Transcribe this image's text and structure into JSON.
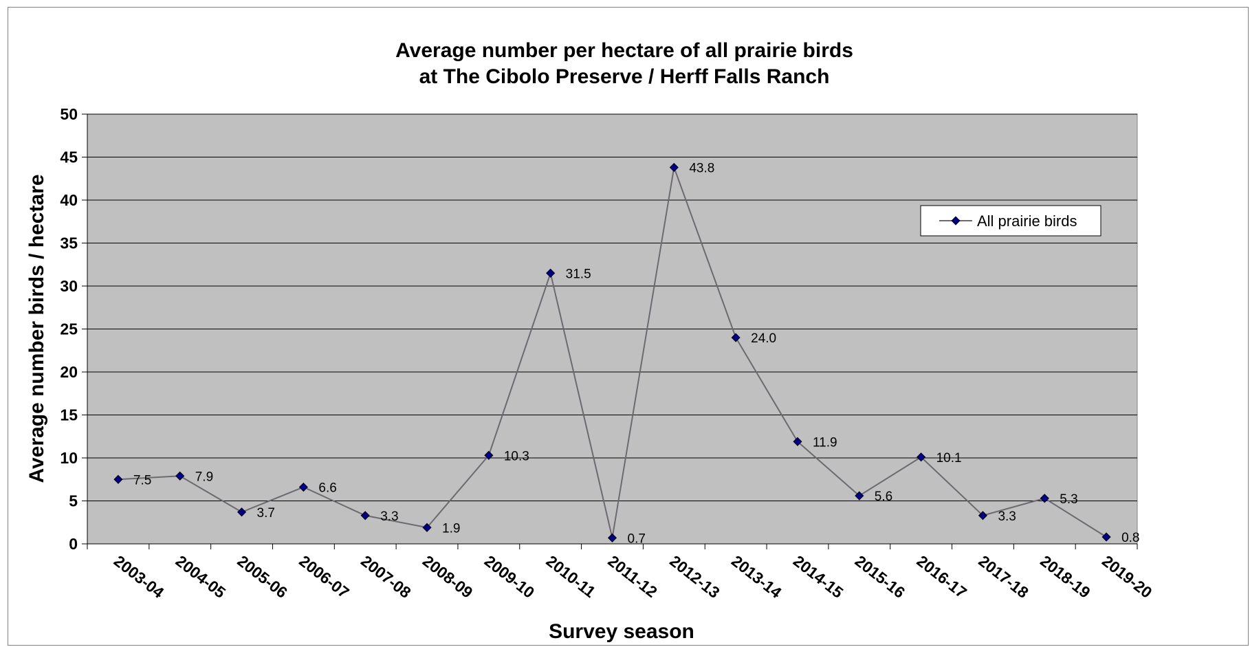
{
  "chart_data": {
    "type": "line",
    "title": "Average number per hectare of all prairie birds",
    "subtitle": "at The Cibolo Preserve / Herff Falls Ranch",
    "xlabel": "Survey season",
    "ylabel": "Average number birds / hectare",
    "ylim": [
      0,
      50
    ],
    "ytick_step": 5,
    "grid": true,
    "plot_background": "#c0c0c0",
    "line_color": "#6e6870",
    "marker_color": "#000080",
    "legend_position": "right",
    "categories": [
      "2003-04",
      "2004-05",
      "2005-06",
      "2006-07",
      "2007-08",
      "2008-09",
      "2009-10",
      "2010-11",
      "2011-12",
      "2012-13",
      "2013-14",
      "2014-15",
      "2015-16",
      "2016-17",
      "2017-18",
      "2018-19",
      "2019-20"
    ],
    "series": [
      {
        "name": "All prairie birds",
        "values": [
          7.5,
          7.9,
          3.7,
          6.6,
          3.3,
          1.9,
          10.3,
          31.5,
          0.7,
          43.8,
          24.0,
          11.9,
          5.6,
          10.1,
          3.3,
          5.3,
          0.8
        ],
        "labels": [
          "7.5",
          "7.9",
          "3.7",
          "6.6",
          "3.3",
          "1.9",
          "10.3",
          "31.5",
          "0.7",
          "43.8",
          "24.0",
          "11.9",
          "5.6",
          "10.1",
          "3.3",
          "5.3",
          "0.8"
        ]
      }
    ]
  }
}
